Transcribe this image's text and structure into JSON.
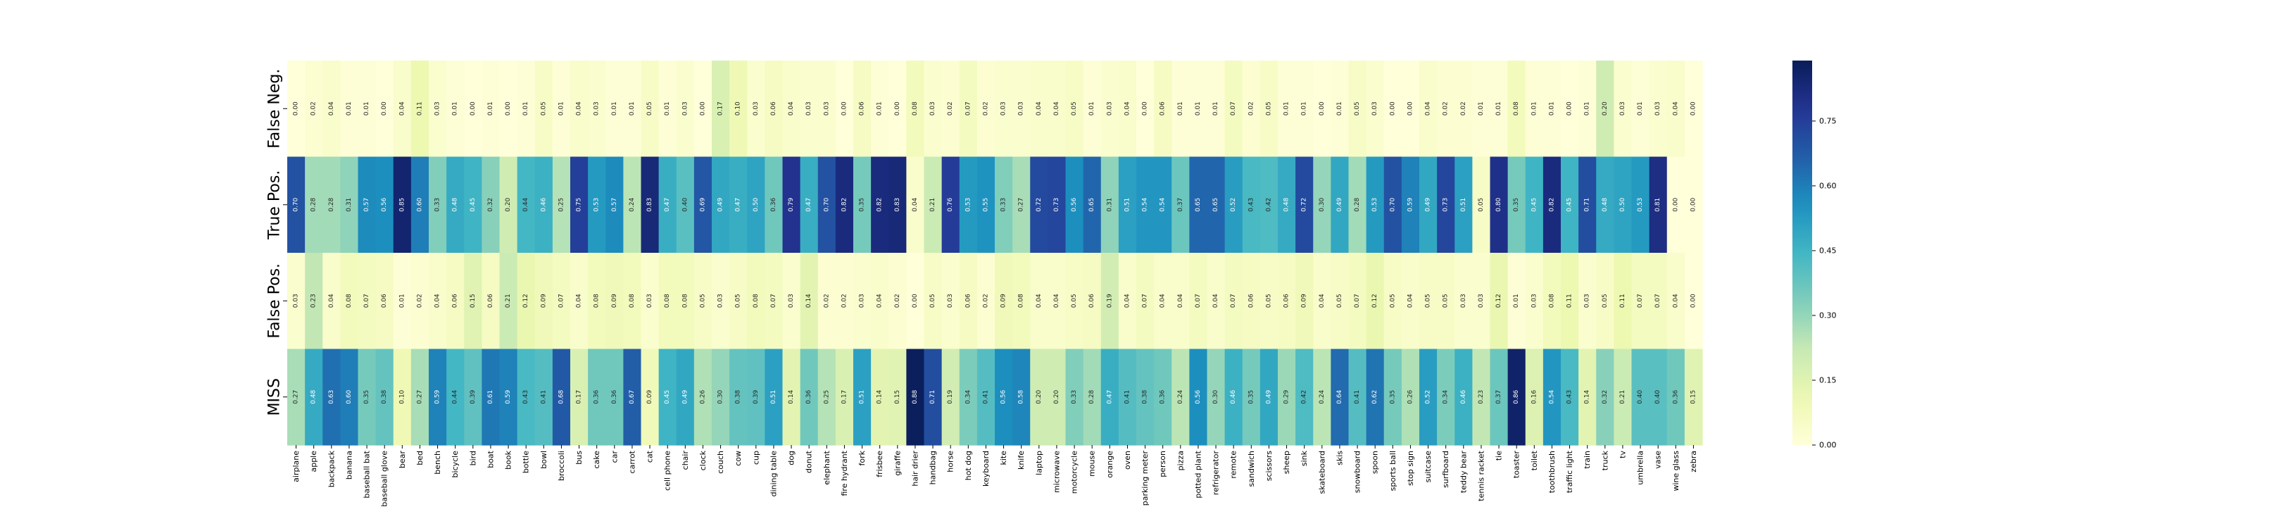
{
  "chart_data": {
    "type": "heatmap",
    "title": "",
    "xlabel": "",
    "ylabel": "",
    "rows": [
      "False Neg.",
      "True Pos.",
      "False Pos.",
      "MISS"
    ],
    "categories": [
      "airplane",
      "apple",
      "backpack",
      "banana",
      "baseball bat",
      "baseball glove",
      "bear",
      "bed",
      "bench",
      "bicycle",
      "bird",
      "boat",
      "book",
      "bottle",
      "bowl",
      "broccoli",
      "bus",
      "cake",
      "car",
      "carrot",
      "cat",
      "cell phone",
      "chair",
      "clock",
      "couch",
      "cow",
      "cup",
      "dining table",
      "dog",
      "donut",
      "elephant",
      "fire hydrant",
      "fork",
      "frisbee",
      "giraffe",
      "hair drier",
      "handbag",
      "horse",
      "hot dog",
      "keyboard",
      "kite",
      "knife",
      "laptop",
      "microwave",
      "motorcycle",
      "mouse",
      "orange",
      "oven",
      "parking meter",
      "person",
      "pizza",
      "potted plant",
      "refrigerator",
      "remote",
      "sandwich",
      "scissors",
      "sheep",
      "sink",
      "skateboard",
      "skis",
      "snowboard",
      "spoon",
      "sports ball",
      "stop sign",
      "suitcase",
      "surfboard",
      "teddy bear",
      "tennis racket",
      "tie",
      "toaster",
      "toilet",
      "toothbrush",
      "traffic light",
      "train",
      "truck",
      "tv",
      "umbrella",
      "vase",
      "wine glass",
      "zebra"
    ],
    "values": [
      [
        0.0,
        0.02,
        0.04,
        0.01,
        0.01,
        0.0,
        0.04,
        0.11,
        0.03,
        0.01,
        0.0,
        0.01,
        0.0,
        0.01,
        0.05,
        0.01,
        0.04,
        0.03,
        0.01,
        0.01,
        0.05,
        0.01,
        0.03,
        0.0,
        0.17,
        0.1,
        0.03,
        0.06,
        0.04,
        0.03,
        0.03,
        0.0,
        0.06,
        0.01,
        0.0,
        0.08,
        0.03,
        0.02,
        0.07,
        0.02,
        0.03,
        0.03,
        0.04,
        0.04,
        0.05,
        0.01,
        0.03,
        0.04,
        0.0,
        0.06,
        0.01,
        0.01,
        0.01,
        0.07,
        0.02,
        0.05,
        0.01,
        0.01,
        0.0,
        0.01,
        0.05,
        0.03,
        0.0,
        0.0,
        0.04,
        0.02,
        0.02,
        0.01,
        0.01,
        0.08,
        0.01,
        0.01,
        0.0,
        0.01,
        0.2,
        0.03,
        0.01,
        0.03,
        0.04,
        0.0
      ],
      [
        0.7,
        0.28,
        0.28,
        0.31,
        0.57,
        0.56,
        0.85,
        0.6,
        0.33,
        0.48,
        0.45,
        0.32,
        0.2,
        0.44,
        0.46,
        0.25,
        0.75,
        0.53,
        0.57,
        0.24,
        0.83,
        0.47,
        0.4,
        0.69,
        0.49,
        0.47,
        0.5,
        0.36,
        0.79,
        0.47,
        0.7,
        0.82,
        0.35,
        0.82,
        0.83,
        0.04,
        0.21,
        0.76,
        0.53,
        0.55,
        0.33,
        0.27,
        0.72,
        0.73,
        0.56,
        0.65,
        0.31,
        0.51,
        0.54,
        0.54,
        0.37,
        0.65,
        0.65,
        0.52,
        0.43,
        0.42,
        0.48,
        0.72,
        0.3,
        0.49,
        0.28,
        0.53,
        0.7,
        0.59,
        0.49,
        0.73,
        0.51,
        0.05,
        0.8,
        0.35,
        0.45,
        0.82,
        0.45,
        0.71,
        0.48,
        0.5,
        0.53,
        0.81,
        0.0,
        0.0
      ],
      [
        0.03,
        0.23,
        0.04,
        0.08,
        0.07,
        0.06,
        0.01,
        0.02,
        0.04,
        0.06,
        0.15,
        0.06,
        0.21,
        0.12,
        0.09,
        0.07,
        0.04,
        0.08,
        0.09,
        0.08,
        0.03,
        0.08,
        0.08,
        0.05,
        0.03,
        0.05,
        0.08,
        0.07,
        0.03,
        0.14,
        0.02,
        0.02,
        0.03,
        0.04,
        0.02,
        0.0,
        0.05,
        0.03,
        0.06,
        0.02,
        0.09,
        0.08,
        0.04,
        0.04,
        0.05,
        0.06,
        0.19,
        0.04,
        0.07,
        0.04,
        0.04,
        0.07,
        0.04,
        0.07,
        0.06,
        0.05,
        0.06,
        0.09,
        0.04,
        0.05,
        0.07,
        0.12,
        0.05,
        0.04,
        0.05,
        0.05,
        0.03,
        0.03,
        0.12,
        0.01,
        0.03,
        0.08,
        0.11,
        0.03,
        0.05,
        0.11,
        0.07,
        0.07,
        0.04,
        0.0
      ],
      [
        0.27,
        0.48,
        0.63,
        0.6,
        0.35,
        0.38,
        0.1,
        0.27,
        0.59,
        0.44,
        0.39,
        0.61,
        0.59,
        0.43,
        0.41,
        0.68,
        0.17,
        0.36,
        0.36,
        0.67,
        0.09,
        0.45,
        0.49,
        0.26,
        0.3,
        0.38,
        0.39,
        0.51,
        0.14,
        0.36,
        0.25,
        0.17,
        0.51,
        0.14,
        0.15,
        0.88,
        0.71,
        0.19,
        0.34,
        0.41,
        0.56,
        0.58,
        0.2,
        0.2,
        0.33,
        0.28,
        0.47,
        0.41,
        0.38,
        0.36,
        0.24,
        0.56,
        0.3,
        0.46,
        0.35,
        0.49,
        0.29,
        0.42,
        0.24,
        0.64,
        0.41,
        0.62,
        0.35,
        0.26,
        0.52,
        0.34,
        0.46,
        0.23,
        0.37,
        0.86,
        0.16,
        0.54,
        0.43,
        0.14,
        0.32,
        0.21,
        0.4,
        0.4,
        0.36,
        0.15
      ]
    ],
    "colormap": "YlGnBu",
    "colorbar": {
      "min": 0.0,
      "max": 0.89,
      "ticks": [
        "0.00",
        "0.15",
        "0.30",
        "0.45",
        "0.60",
        "0.75"
      ]
    },
    "grid": false,
    "legend": "colorbar-right"
  }
}
